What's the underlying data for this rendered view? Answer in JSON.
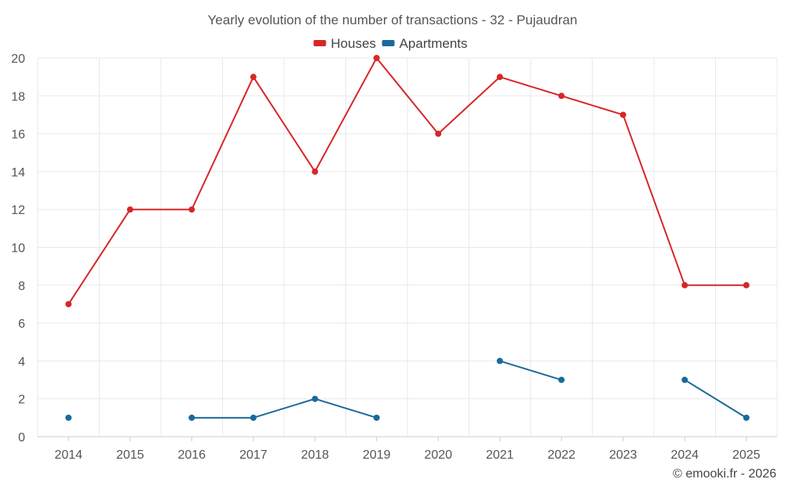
{
  "chart_data": {
    "type": "line",
    "title": "Yearly evolution of the number of transactions - 32 - Pujaudran",
    "categories": [
      "2014",
      "2015",
      "2016",
      "2017",
      "2018",
      "2019",
      "2020",
      "2021",
      "2022",
      "2023",
      "2024",
      "2025"
    ],
    "series": [
      {
        "name": "Houses",
        "color": "#d62728",
        "values": [
          7,
          12,
          12,
          19,
          14,
          20,
          16,
          19,
          18,
          17,
          8,
          8
        ]
      },
      {
        "name": "Apartments",
        "color": "#1a6a9a",
        "values": [
          1,
          null,
          1,
          1,
          2,
          1,
          null,
          4,
          3,
          null,
          3,
          1
        ]
      }
    ],
    "ylim": [
      0,
      20
    ],
    "yticks": [
      0,
      2,
      4,
      6,
      8,
      10,
      12,
      14,
      16,
      18,
      20
    ],
    "xlabel": "",
    "ylabel": "",
    "legend": "top-center",
    "grid": true
  },
  "credit": "© emooki.fr - 2026"
}
